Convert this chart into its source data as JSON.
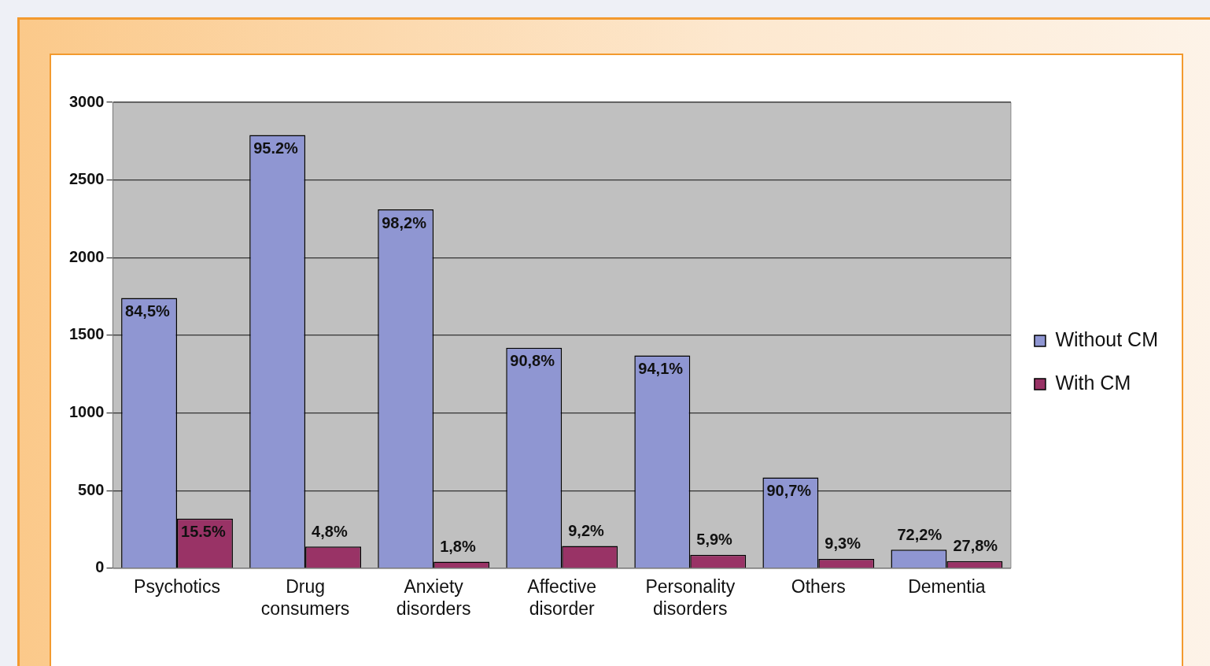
{
  "chart_data": {
    "type": "bar",
    "categories": [
      "Psychotics",
      "Drug consumers",
      "Anxiety disorders",
      "Affective disorder",
      "Personality disorders",
      "Others",
      "Dementia"
    ],
    "series": [
      {
        "name": "Without CM",
        "color": "#8f96d2",
        "values": [
          1740,
          2790,
          2310,
          1420,
          1370,
          585,
          120
        ]
      },
      {
        "name": "With CM",
        "color": "#993366",
        "values": [
          320,
          140,
          42,
          144,
          86,
          60,
          46
        ]
      }
    ],
    "annotations": [
      {
        "text": "84,5%",
        "x": "Psychotics",
        "y": 1740
      },
      {
        "text": "95.2%",
        "x": "Drug consumers",
        "y": 2790
      },
      {
        "text": "98,2%",
        "x": "Anxiety disorders",
        "y": 2310
      },
      {
        "text": "90,8%",
        "x": "Affective disorder",
        "y": 1420
      },
      {
        "text": "94,1%",
        "x": "Personality disorders",
        "y": 1370
      },
      {
        "text": "90,7%",
        "x": "Others",
        "y": 585
      },
      {
        "text": "72,2%",
        "x": "Dementia",
        "y": 120
      },
      {
        "text": "15.5%",
        "x": "Psychotics",
        "y": 320
      },
      {
        "text": "4,8%",
        "x": "Drug consumers",
        "y": 140
      },
      {
        "text": "1,8%",
        "x": "Anxiety disorders",
        "y": 42
      },
      {
        "text": "9,2%",
        "x": "Affective disorder",
        "y": 144
      },
      {
        "text": "5,9%",
        "x": "Personality disorders",
        "y": 86
      },
      {
        "text": "9,3%",
        "x": "Others",
        "y": 60
      },
      {
        "text": "27,8%",
        "x": "Dementia",
        "y": 46
      }
    ],
    "ylim": [
      0,
      3000
    ],
    "yticks": [
      0,
      500,
      1000,
      1500,
      2000,
      2500,
      3000
    ],
    "grid": "y",
    "legend": "right"
  }
}
